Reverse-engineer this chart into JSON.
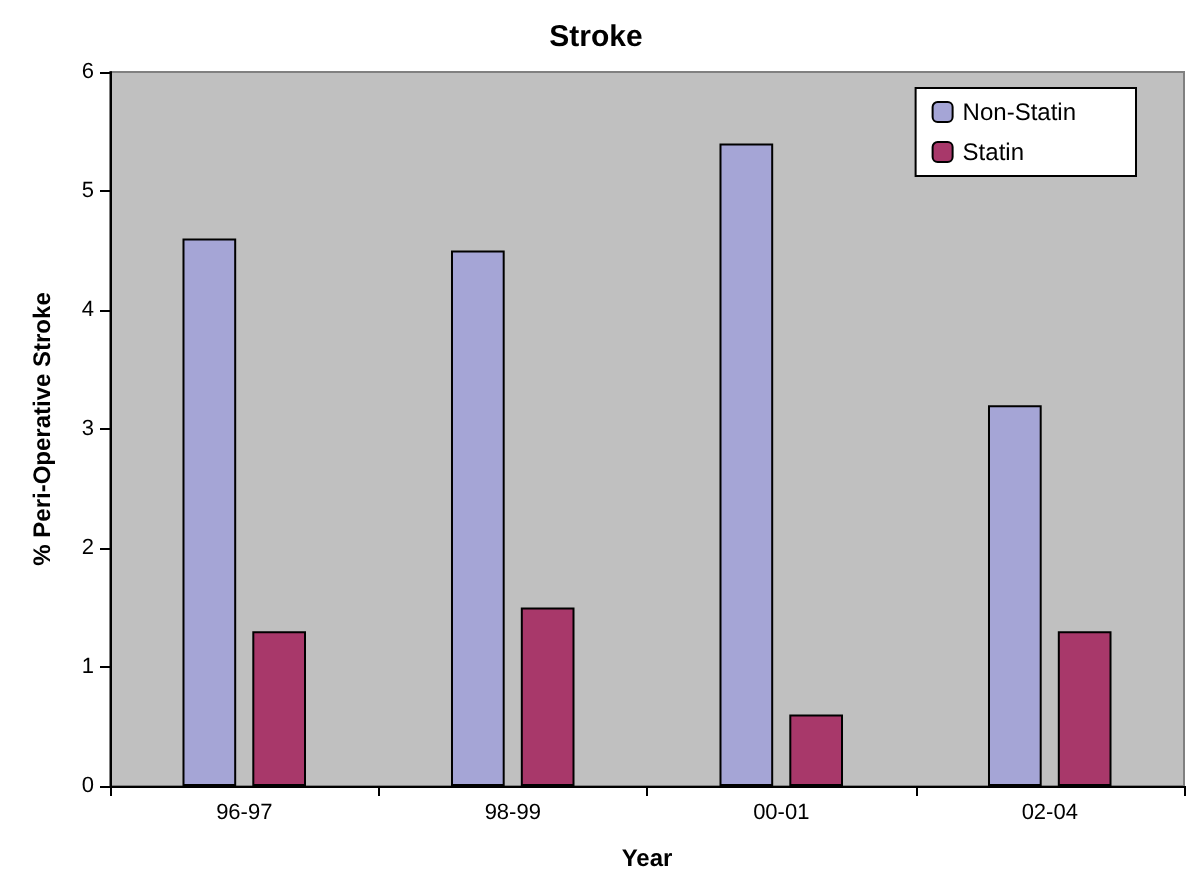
{
  "chart_data": {
    "type": "bar",
    "title": "Stroke",
    "xlabel": "Year",
    "ylabel": "% Peri-Operative Stroke",
    "categories": [
      "96-97",
      "98-99",
      "00-01",
      "02-04"
    ],
    "series": [
      {
        "name": "Non-Statin",
        "color": "#a5a5d6",
        "values": [
          4.6,
          4.5,
          5.4,
          3.2
        ]
      },
      {
        "name": "Statin",
        "color": "#a8386a",
        "values": [
          1.3,
          1.5,
          0.6,
          1.3
        ]
      }
    ],
    "ylim": [
      0,
      6
    ],
    "yticks": [
      0,
      1,
      2,
      3,
      4,
      5,
      6
    ],
    "grid": false,
    "legend": "top right"
  }
}
